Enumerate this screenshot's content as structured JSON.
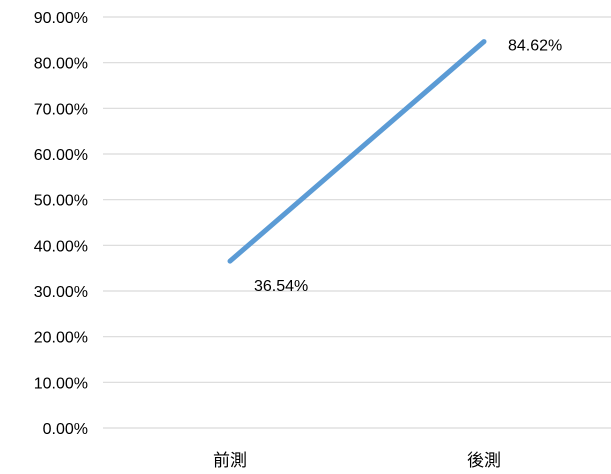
{
  "chart_data": {
    "type": "line",
    "categories": [
      "前測",
      "後測"
    ],
    "series": [
      {
        "values": [
          36.54,
          84.62
        ],
        "data_labels": [
          "36.54%",
          "84.62%"
        ],
        "color": "#5B9BD5"
      }
    ],
    "ylim": [
      0,
      90
    ],
    "yticks": [
      0,
      10,
      20,
      30,
      40,
      50,
      60,
      70,
      80,
      90
    ],
    "ytick_labels": [
      "0.00%",
      "10.00%",
      "20.00%",
      "30.00%",
      "40.00%",
      "50.00%",
      "60.00%",
      "70.00%",
      "80.00%",
      "90.00%"
    ],
    "grid": true,
    "gridline_color": "#D9D9D9"
  }
}
